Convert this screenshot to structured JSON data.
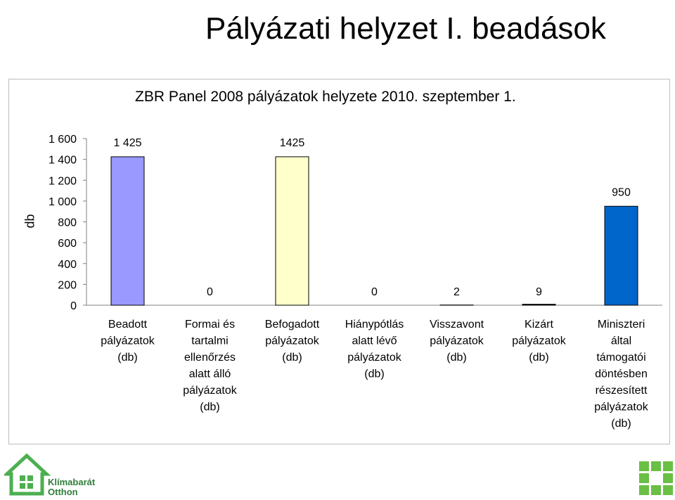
{
  "header": {
    "title": "Pályázati helyzet I. beadások"
  },
  "chart_data": {
    "type": "bar",
    "title": "ZBR Panel 2008 pályázatok helyzete 2010. szeptember 1.",
    "ylabel": "db",
    "xlabel": "",
    "ylim": [
      0,
      1600
    ],
    "yticks": [
      "0",
      "200",
      "400",
      "600",
      "800",
      "1 000",
      "1 200",
      "1 400",
      "1 600"
    ],
    "grid": false,
    "categories": [
      [
        "Beadott",
        "pályázatok",
        "(db)"
      ],
      [
        "Formai és",
        "tartalmi",
        "ellenőrzés",
        "alatt álló",
        "pályázatok",
        "(db)"
      ],
      [
        "Befogadott",
        "pályázatok",
        "(db)"
      ],
      [
        "Hiánypótlás",
        "alatt lévő",
        "pályázatok",
        "(db)"
      ],
      [
        "Visszavont",
        "pályázatok",
        "(db)"
      ],
      [
        "Kizárt",
        "pályázatok",
        "(db)"
      ],
      [
        "Miniszteri",
        "által",
        "támogatói",
        "döntésben",
        "részesített",
        "pályázatok",
        "(db)"
      ]
    ],
    "values": [
      1425,
      0,
      1425,
      0,
      2,
      9,
      950
    ],
    "data_labels": [
      "1 425",
      "0",
      "1425",
      "0",
      "2",
      "9",
      "950"
    ],
    "colors": [
      "#9999ff",
      "#993366",
      "#ffffcc",
      "#ccffff",
      "#660066",
      "#000000",
      "#0066cc"
    ]
  },
  "logos": {
    "left_text": "Klímabarát\nOtthon",
    "left_icon": "house-logo-icon",
    "right_icon": "grid-logo-icon",
    "brand_color": "#4caf50"
  }
}
